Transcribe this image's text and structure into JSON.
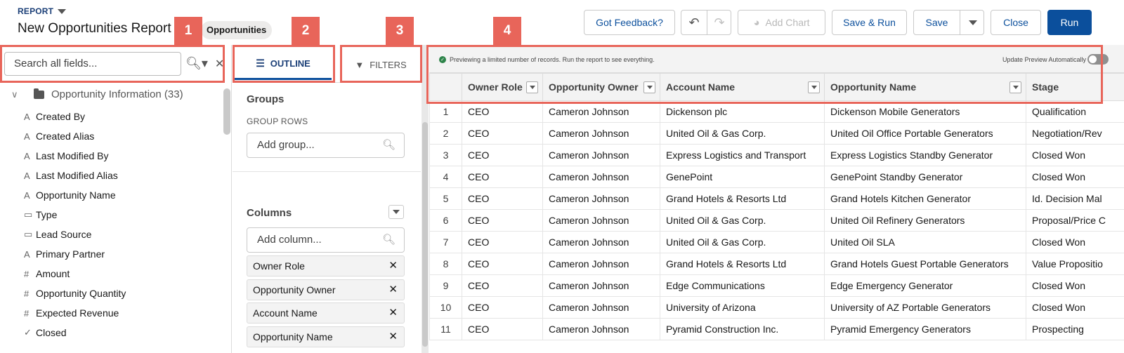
{
  "header": {
    "report_label": "REPORT",
    "title": "New Opportunities Report",
    "object_pill": "Opportunities",
    "buttons": {
      "feedback": "Got Feedback?",
      "add_chart": "Add Chart",
      "save_run": "Save & Run",
      "save": "Save",
      "close": "Close",
      "run": "Run"
    }
  },
  "callouts": [
    "1",
    "2",
    "3",
    "4"
  ],
  "fields_panel": {
    "search_placeholder": "Search all fields...",
    "folder_label": "Opportunity Information (33)",
    "fields": [
      {
        "icon": "A",
        "label": "Created By"
      },
      {
        "icon": "A",
        "label": "Created Alias"
      },
      {
        "icon": "A",
        "label": "Last Modified By"
      },
      {
        "icon": "A",
        "label": "Last Modified Alias"
      },
      {
        "icon": "A",
        "label": "Opportunity Name"
      },
      {
        "icon": "▭",
        "label": "Type"
      },
      {
        "icon": "▭",
        "label": "Lead Source"
      },
      {
        "icon": "A",
        "label": "Primary Partner"
      },
      {
        "icon": "#",
        "label": "Amount"
      },
      {
        "icon": "#",
        "label": "Opportunity Quantity"
      },
      {
        "icon": "#",
        "label": "Expected Revenue"
      },
      {
        "icon": "✓",
        "label": "Closed"
      }
    ]
  },
  "outline_panel": {
    "tabs": {
      "outline": "OUTLINE",
      "filters": "FILTERS"
    },
    "groups_title": "Groups",
    "group_rows_label": "GROUP ROWS",
    "add_group_placeholder": "Add group...",
    "columns_title": "Columns",
    "add_column_placeholder": "Add column...",
    "columns": [
      "Owner Role",
      "Opportunity Owner",
      "Account Name",
      "Opportunity Name"
    ]
  },
  "preview": {
    "message": "Previewing a limited number of records. Run the report to see everything.",
    "auto_update_label": "Update Preview Automatically",
    "auto_update_on": false,
    "headers": [
      "Owner Role",
      "Opportunity Owner",
      "Account Name",
      "Opportunity Name",
      "Stage"
    ],
    "rows": [
      [
        "1",
        "CEO",
        "Cameron Johnson",
        "Dickenson plc",
        "Dickenson Mobile Generators",
        "Qualification"
      ],
      [
        "2",
        "CEO",
        "Cameron Johnson",
        "United Oil & Gas Corp.",
        "United Oil Office Portable Generators",
        "Negotiation/Rev"
      ],
      [
        "3",
        "CEO",
        "Cameron Johnson",
        "Express Logistics and Transport",
        "Express Logistics Standby Generator",
        "Closed Won"
      ],
      [
        "4",
        "CEO",
        "Cameron Johnson",
        "GenePoint",
        "GenePoint Standby Generator",
        "Closed Won"
      ],
      [
        "5",
        "CEO",
        "Cameron Johnson",
        "Grand Hotels & Resorts Ltd",
        "Grand Hotels Kitchen Generator",
        "Id. Decision Mal"
      ],
      [
        "6",
        "CEO",
        "Cameron Johnson",
        "United Oil & Gas Corp.",
        "United Oil Refinery Generators",
        "Proposal/Price C"
      ],
      [
        "7",
        "CEO",
        "Cameron Johnson",
        "United Oil & Gas Corp.",
        "United Oil SLA",
        "Closed Won"
      ],
      [
        "8",
        "CEO",
        "Cameron Johnson",
        "Grand Hotels & Resorts Ltd",
        "Grand Hotels Guest Portable Generators",
        "Value Propositio"
      ],
      [
        "9",
        "CEO",
        "Cameron Johnson",
        "Edge Communications",
        "Edge Emergency Generator",
        "Closed Won"
      ],
      [
        "10",
        "CEO",
        "Cameron Johnson",
        "University of Arizona",
        "University of AZ Portable Generators",
        "Closed Won"
      ],
      [
        "11",
        "CEO",
        "Cameron Johnson",
        "Pyramid Construction Inc.",
        "Pyramid Emergency Generators",
        "Prospecting"
      ]
    ]
  },
  "colors": {
    "callout": "#e8655a",
    "brand": "#0b4f9c",
    "success": "#2e844a"
  }
}
